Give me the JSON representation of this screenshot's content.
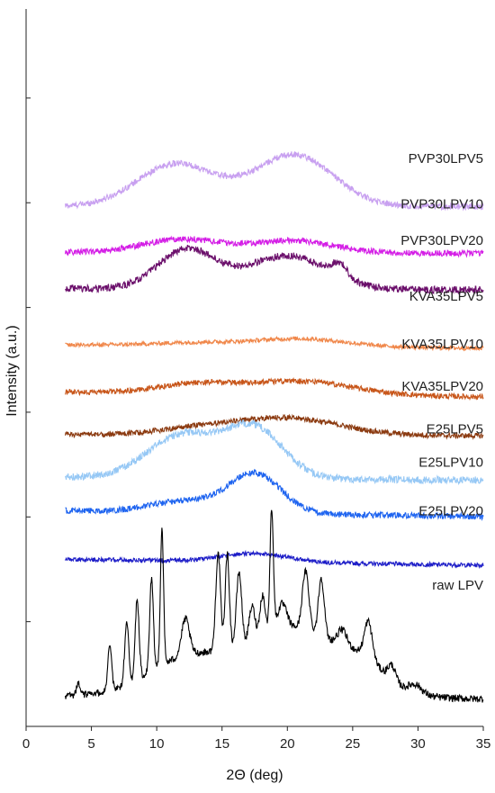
{
  "chart_data": {
    "type": "line",
    "title": "",
    "xlabel": "2Θ (deg)",
    "ylabel": "Intensity (a.u.)",
    "xlim": [
      0,
      35
    ],
    "x_ticks": [
      0,
      5,
      10,
      15,
      20,
      25,
      30,
      35
    ],
    "y_ticks_count": 6,
    "x_range": [
      3,
      35
    ],
    "legend": "labels right of each trace",
    "grid": false,
    "series": [
      {
        "name": "PVP30LPV5",
        "color": "#c8a0f0",
        "baseline": 8.55,
        "noise": 0.05,
        "humps": [
          [
            11.5,
            3.0,
            0.7
          ],
          [
            20.5,
            3.0,
            0.85
          ]
        ],
        "end": 8.55
      },
      {
        "name": "PVP30LPV10",
        "color": "#d41ee6",
        "baseline": 7.8,
        "noise": 0.05,
        "humps": [
          [
            12,
            3.0,
            0.22
          ],
          [
            20.5,
            3.0,
            0.2
          ]
        ],
        "end": 7.78
      },
      {
        "name": "PVP30LPV20",
        "color": "#6b0f6b",
        "baseline": 7.2,
        "noise": 0.06,
        "humps": [
          [
            12.3,
            2.2,
            0.65
          ],
          [
            20,
            3.0,
            0.55
          ],
          [
            24,
            0.6,
            0.22
          ]
        ],
        "end": 7.18
      },
      {
        "name": "KVA35LPV5",
        "color": "#f0874a",
        "baseline": 6.28,
        "noise": 0.035,
        "humps": [
          [
            13,
            3.0,
            0.05
          ],
          [
            21,
            3.5,
            0.13
          ]
        ],
        "end": 6.22
      },
      {
        "name": "KVA35LPV10",
        "color": "#c8561a",
        "baseline": 5.5,
        "noise": 0.045,
        "humps": [
          [
            13,
            3.0,
            0.15
          ],
          [
            21,
            4.0,
            0.22
          ]
        ],
        "end": 5.42
      },
      {
        "name": "KVA35LPV20",
        "color": "#8b3a10",
        "baseline": 4.8,
        "noise": 0.045,
        "humps": [
          [
            13,
            3.0,
            0.1
          ],
          [
            20,
            4.0,
            0.28
          ]
        ],
        "end": 4.78
      },
      {
        "name": "E25LPV5",
        "color": "#96c8f5",
        "baseline": 4.1,
        "noise": 0.06,
        "humps": [
          [
            12,
            2.7,
            0.7
          ],
          [
            17.5,
            2.2,
            0.8
          ]
        ],
        "end": 4.05
      },
      {
        "name": "E25LPV10",
        "color": "#1e64f0",
        "baseline": 3.55,
        "noise": 0.05,
        "humps": [
          [
            12,
            2.5,
            0.18
          ],
          [
            17.5,
            2.0,
            0.65
          ]
        ],
        "end": 3.45
      },
      {
        "name": "E25LPV20",
        "color": "#1e1ec8",
        "baseline": 2.75,
        "noise": 0.035,
        "humps": [
          [
            17.5,
            2.5,
            0.14
          ]
        ],
        "end": 2.65
      },
      {
        "name": "raw LPV",
        "color": "#000000",
        "baseline": 0.5,
        "noise": 0.06,
        "humps": [
          [
            12,
            3.0,
            0.55
          ],
          [
            20.5,
            4.0,
            1.15
          ],
          [
            26,
            1.5,
            0.25
          ]
        ],
        "peaks": [
          [
            4.0,
            0.15,
            0.18
          ],
          [
            6.4,
            0.15,
            0.7
          ],
          [
            7.7,
            0.15,
            1.05
          ],
          [
            8.5,
            0.15,
            1.3
          ],
          [
            9.6,
            0.14,
            1.5
          ],
          [
            10.4,
            0.12,
            2.25
          ],
          [
            12.2,
            0.3,
            0.6
          ],
          [
            14.7,
            0.18,
            1.6
          ],
          [
            15.4,
            0.16,
            1.55
          ],
          [
            16.3,
            0.2,
            1.2
          ],
          [
            17.3,
            0.22,
            0.55
          ],
          [
            18.1,
            0.2,
            0.65
          ],
          [
            18.8,
            0.13,
            2.0
          ],
          [
            19.6,
            0.35,
            0.4
          ],
          [
            21.4,
            0.25,
            0.95
          ],
          [
            22.6,
            0.22,
            0.95
          ],
          [
            24.2,
            0.35,
            0.25
          ],
          [
            26.2,
            0.3,
            0.6
          ],
          [
            28,
            0.3,
            0.25
          ],
          [
            29.8,
            0.5,
            0.15
          ]
        ],
        "end": 0.45
      }
    ]
  }
}
